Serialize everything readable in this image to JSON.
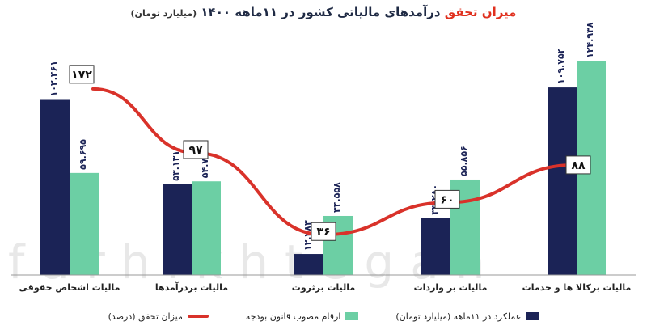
{
  "chart_data": {
    "type": "bar",
    "title": {
      "highlight": "میزان تحقق",
      "main": "درآمدهای مالیاتی کشور در ۱۱ماهه ۱۴۰۰",
      "unit": "(میلیارد تومان)"
    },
    "categories": [
      "مالیات اشخاص حقوقی",
      "مالیات بردرآمدها",
      "مالیات برثروت",
      "مالیات بر واردات",
      "مالیات برکالا ها و خدمات"
    ],
    "series": [
      {
        "name": "عملکرد در ۱۱ماهه (میلیارد تومان)",
        "values": [
          102461,
          53131,
          12283,
          33280,
          109754
        ],
        "labels": [
          "۱۰۲.۴۶۱",
          "۵۳.۱۳۱",
          "۱۲.۲۸۳",
          "۳۳.۲۸۰",
          "۱۰۹.۷۵۴"
        ],
        "color": "#1b2356"
      },
      {
        "name": "ارقام مصوب قانون بودجه",
        "values": [
          59695,
          54793,
          34558,
          55856,
          124938
        ],
        "labels": [
          "۵۹.۶۹۵",
          "۵۴.۷۹۳",
          "۳۴.۵۵۸",
          "۵۵.۸۵۶",
          "۱۲۴.۹۳۸"
        ],
        "color": "#6ccfa4"
      }
    ],
    "line": {
      "name": "میزان تحقق (درصد)",
      "values": [
        172,
        97,
        36,
        60,
        88
      ],
      "labels": [
        "۱۷۲",
        "۹۷",
        "۳۶",
        "۶۰",
        "۸۸"
      ],
      "color": "#d9322a"
    },
    "legend_position": "bottom",
    "grid": false
  },
  "watermark": "farhikhtegan"
}
